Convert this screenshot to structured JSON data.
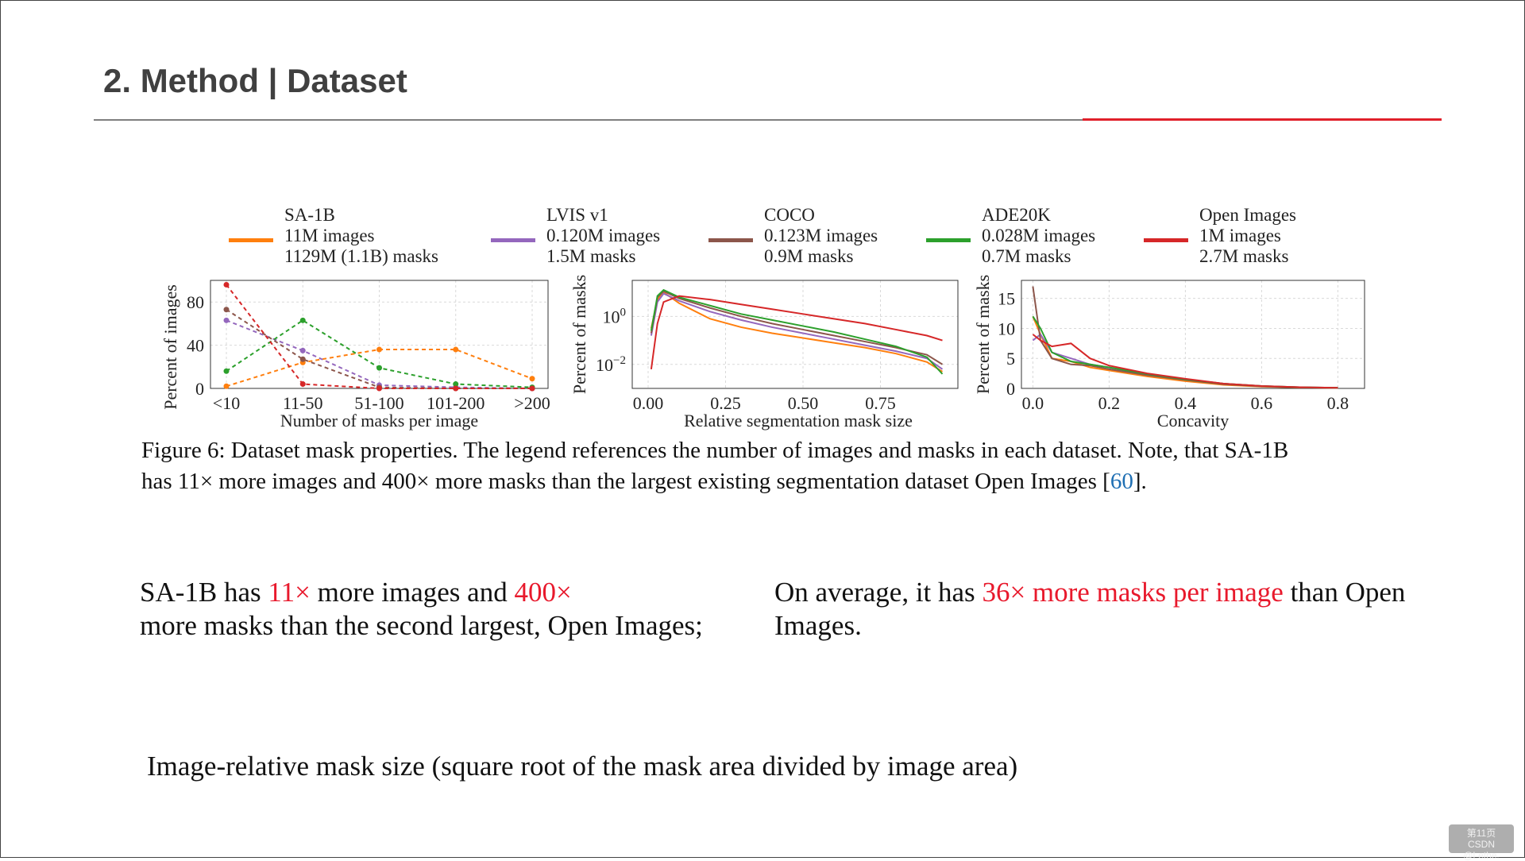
{
  "slide": {
    "title": "2. Method | Dataset",
    "colors": {
      "accent_red": "#e0202a",
      "rule_gray": "#7f7f7f"
    }
  },
  "legend": [
    {
      "name": "SA-1B",
      "images": "11M images",
      "masks": "1129M (1.1B) masks",
      "color": "#ff7f0e"
    },
    {
      "name": "LVIS v1",
      "images": "0.120M images",
      "masks": "1.5M masks",
      "color": "#9467bd"
    },
    {
      "name": "COCO",
      "images": "0.123M images",
      "masks": "0.9M masks",
      "color": "#8c564b"
    },
    {
      "name": "ADE20K",
      "images": "0.028M images",
      "masks": "0.7M masks",
      "color": "#2ca02c"
    },
    {
      "name": "Open Images",
      "images": "1M images",
      "masks": "2.7M masks",
      "color": "#d62728"
    }
  ],
  "chart_data": [
    {
      "type": "line",
      "xlabel": "Number of masks per image",
      "ylabel": "Percent of images",
      "categories": [
        "<10",
        "11-50",
        "51-100",
        "101-200",
        ">200"
      ],
      "ylim": [
        0,
        100
      ],
      "yticks": [
        0,
        40,
        80
      ],
      "grid": true,
      "line_style": "dashed-with-markers",
      "series": [
        {
          "name": "SA-1B",
          "values": [
            2,
            24,
            36,
            36,
            9
          ]
        },
        {
          "name": "LVIS v1",
          "values": [
            63,
            35,
            3,
            1,
            0
          ]
        },
        {
          "name": "COCO",
          "values": [
            73,
            27,
            1,
            0,
            0
          ]
        },
        {
          "name": "ADE20K",
          "values": [
            16,
            63,
            19,
            4,
            1
          ]
        },
        {
          "name": "Open Images",
          "values": [
            96,
            4,
            0,
            0,
            0
          ]
        }
      ]
    },
    {
      "type": "line",
      "xlabel": "Relative segmentation mask size",
      "ylabel": "Percent of masks",
      "x_tick_labels": [
        "0.00",
        "0.25",
        "0.50",
        "0.75"
      ],
      "xlim": [
        0,
        1
      ],
      "y_scale": "log",
      "y_tick_labels": [
        "10^0",
        "10^-2"
      ],
      "ylim_log10": [
        -3,
        1.5
      ],
      "grid": true,
      "series": [
        {
          "name": "SA-1B",
          "x": [
            0.01,
            0.03,
            0.05,
            0.1,
            0.2,
            0.3,
            0.4,
            0.5,
            0.6,
            0.7,
            0.8,
            0.9,
            0.95
          ],
          "log10_y": [
            -0.5,
            0.7,
            1.0,
            0.55,
            -0.1,
            -0.45,
            -0.7,
            -0.9,
            -1.1,
            -1.3,
            -1.55,
            -1.9,
            -2.3
          ]
        },
        {
          "name": "LVIS v1",
          "x": [
            0.01,
            0.03,
            0.05,
            0.1,
            0.2,
            0.3,
            0.4,
            0.5,
            0.6,
            0.7,
            0.8,
            0.9,
            0.95
          ],
          "log10_y": [
            -0.8,
            0.6,
            0.95,
            0.65,
            0.2,
            -0.15,
            -0.45,
            -0.7,
            -0.95,
            -1.2,
            -1.45,
            -1.75,
            -2.2
          ]
        },
        {
          "name": "COCO",
          "x": [
            0.01,
            0.03,
            0.05,
            0.1,
            0.2,
            0.3,
            0.4,
            0.5,
            0.6,
            0.7,
            0.8,
            0.9,
            0.95
          ],
          "log10_y": [
            -0.7,
            0.8,
            1.05,
            0.75,
            0.35,
            0.0,
            -0.3,
            -0.55,
            -0.8,
            -1.05,
            -1.3,
            -1.6,
            -2.0
          ]
        },
        {
          "name": "ADE20K",
          "x": [
            0.01,
            0.03,
            0.05,
            0.1,
            0.2,
            0.3,
            0.4,
            0.5,
            0.6,
            0.7,
            0.8,
            0.9,
            0.95
          ],
          "log10_y": [
            -0.6,
            0.85,
            1.1,
            0.8,
            0.45,
            0.1,
            -0.15,
            -0.4,
            -0.65,
            -0.95,
            -1.25,
            -1.7,
            -2.4
          ]
        },
        {
          "name": "Open Images",
          "x": [
            0.01,
            0.03,
            0.05,
            0.1,
            0.2,
            0.3,
            0.4,
            0.5,
            0.6,
            0.7,
            0.8,
            0.9,
            0.95
          ],
          "log10_y": [
            -2.2,
            -0.3,
            0.6,
            0.85,
            0.7,
            0.5,
            0.3,
            0.1,
            -0.1,
            -0.3,
            -0.55,
            -0.8,
            -1.0
          ]
        }
      ]
    },
    {
      "type": "line",
      "xlabel": "Concavity",
      "ylabel": "Percent of masks",
      "x_tick_labels": [
        "0.0",
        "0.2",
        "0.4",
        "0.6",
        "0.8"
      ],
      "xlim": [
        -0.03,
        0.87
      ],
      "yticks": [
        0,
        5,
        10,
        15
      ],
      "ylim": [
        0,
        18
      ],
      "grid": true,
      "series": [
        {
          "name": "SA-1B",
          "x": [
            0.0,
            0.02,
            0.05,
            0.1,
            0.15,
            0.2,
            0.3,
            0.4,
            0.5,
            0.6,
            0.7,
            0.8
          ],
          "values": [
            12,
            9,
            5,
            4.5,
            3.5,
            3,
            2,
            1.2,
            0.6,
            0.3,
            0.15,
            0.1
          ]
        },
        {
          "name": "LVIS v1",
          "x": [
            0.0,
            0.02,
            0.05,
            0.1,
            0.15,
            0.2,
            0.3,
            0.4,
            0.5,
            0.6,
            0.7,
            0.8
          ],
          "values": [
            8,
            9,
            6,
            5,
            4,
            3.5,
            2.3,
            1.5,
            0.8,
            0.4,
            0.2,
            0.1
          ]
        },
        {
          "name": "COCO",
          "x": [
            0.0,
            0.02,
            0.05,
            0.1,
            0.15,
            0.2,
            0.3,
            0.4,
            0.5,
            0.6,
            0.7,
            0.8
          ],
          "values": [
            17,
            8,
            5,
            4,
            3.8,
            3.2,
            2.2,
            1.4,
            0.7,
            0.35,
            0.15,
            0.1
          ]
        },
        {
          "name": "ADE20K",
          "x": [
            0.0,
            0.02,
            0.05,
            0.1,
            0.15,
            0.2,
            0.3,
            0.4,
            0.5,
            0.6,
            0.7,
            0.8
          ],
          "values": [
            12,
            10,
            6,
            4.5,
            4,
            3.5,
            2.4,
            1.5,
            0.8,
            0.4,
            0.2,
            0.1
          ]
        },
        {
          "name": "Open Images",
          "x": [
            0.0,
            0.02,
            0.05,
            0.1,
            0.15,
            0.2,
            0.3,
            0.4,
            0.5,
            0.6,
            0.7,
            0.8
          ],
          "values": [
            9,
            8,
            7,
            7.5,
            5,
            3.8,
            2.5,
            1.6,
            0.8,
            0.4,
            0.2,
            0.1
          ]
        }
      ]
    }
  ],
  "caption": {
    "text_line1": "Figure 6: Dataset mask properties. The legend references the number of images and masks in each dataset. Note, that SA-1B",
    "text_line2_pre": "has 11× more images and 400× more masks than the largest existing segmentation dataset Open Images [",
    "ref": "60",
    "text_line2_post": "]."
  },
  "left_text": {
    "p1": "SA-1B has ",
    "r1": "11×",
    "p2": " more images and ",
    "r2": "400×",
    "p3": "more masks than the second largest, Open Images;"
  },
  "right_text": {
    "p1": "On average, it has ",
    "r1": "36× more masks per image",
    "p2": " than Open",
    "p3": "Images."
  },
  "note": "Image-relative mask size (square root of the mask area divided by image area)",
  "page_badge": {
    "line1": "第11页",
    "line2": "CSDN @Lethe."
  }
}
